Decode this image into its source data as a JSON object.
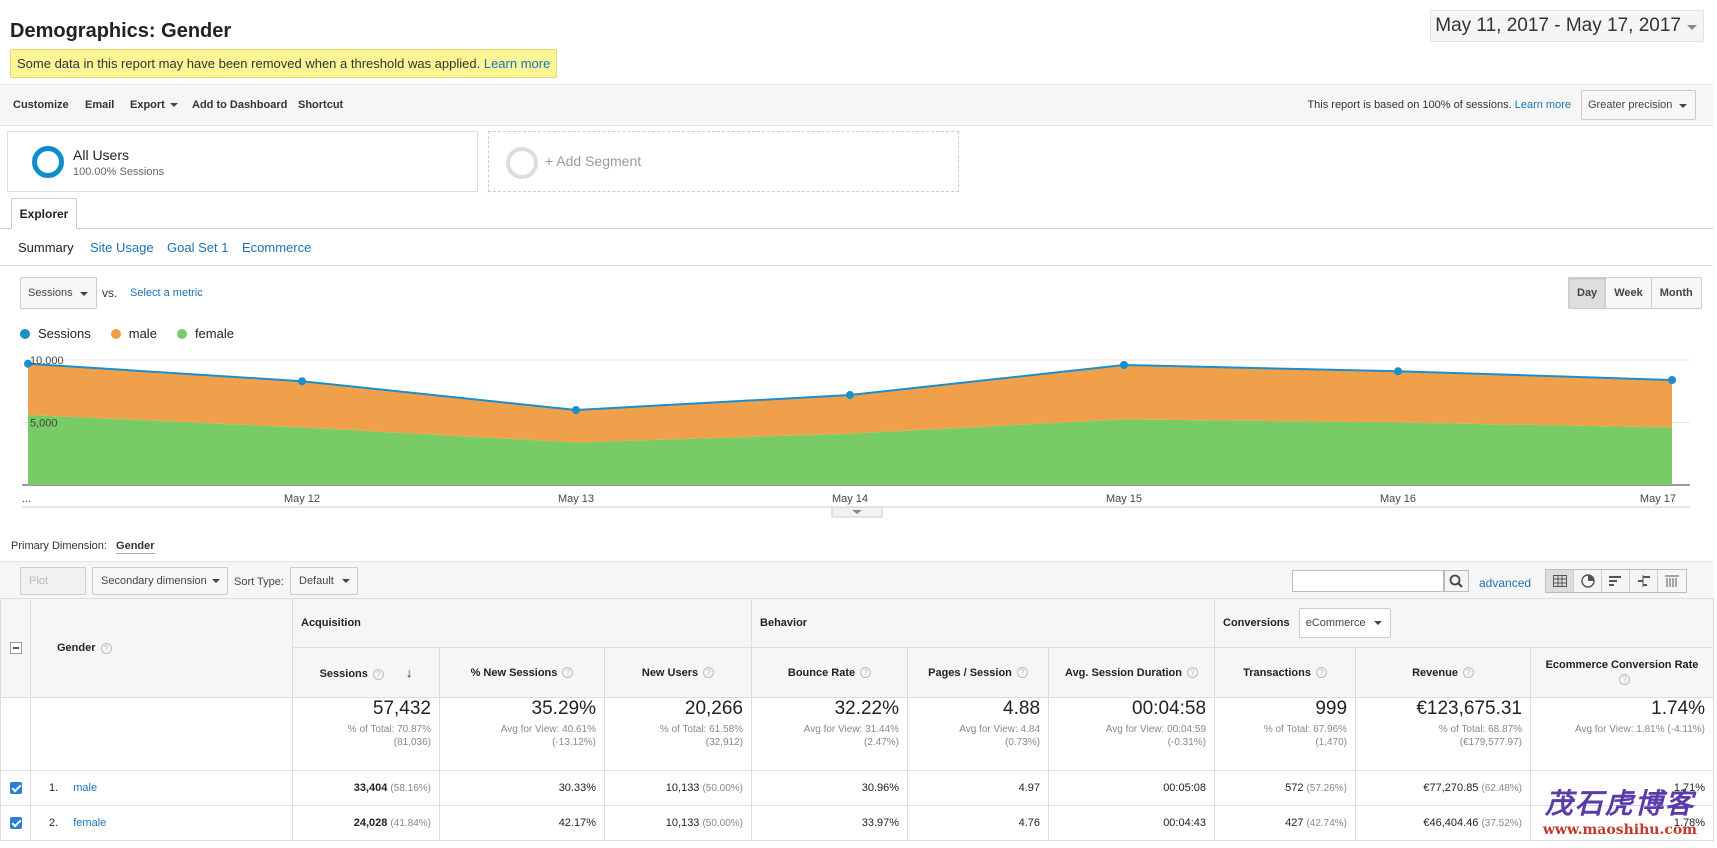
{
  "header": {
    "title": "Demographics: Gender",
    "notice_text": "Some data in this report may have been removed when a threshold was applied.",
    "notice_link": "Learn more",
    "date_range": "May 11, 2017 - May 17, 2017"
  },
  "toolbar": {
    "customize": "Customize",
    "email": "Email",
    "export": "Export",
    "add_to_dashboard": "Add to Dashboard",
    "shortcut": "Shortcut",
    "sampling_text": "This report is based on 100% of sessions.",
    "sampling_link": "Learn more",
    "precision": "Greater precision"
  },
  "segments": {
    "all_users_name": "All Users",
    "all_users_sub": "100.00% Sessions",
    "add_segment": "+ Add Segment"
  },
  "tabs": {
    "explorer": "Explorer",
    "subtabs": [
      "Summary",
      "Site Usage",
      "Goal Set 1",
      "Ecommerce"
    ]
  },
  "chart_controls": {
    "metric": "Sessions",
    "vs": "vs.",
    "select_metric": "Select a metric",
    "periods": [
      "Day",
      "Week",
      "Month"
    ]
  },
  "colors": {
    "sessions": "#1a8fc9",
    "male": "#f0a04b",
    "female": "#77cc66"
  },
  "chart_data": {
    "type": "area",
    "series": [
      {
        "name": "Sessions",
        "values": [
          9700,
          8300,
          6000,
          7200,
          9600,
          9100,
          8400
        ]
      },
      {
        "name": "male",
        "values": [
          4100,
          3700,
          2600,
          3100,
          4350,
          4100,
          3800
        ]
      },
      {
        "name": "female",
        "values": [
          5600,
          4600,
          3400,
          4100,
          5250,
          5000,
          4600
        ]
      }
    ],
    "x": [
      "...",
      "May 12",
      "May 13",
      "May 14",
      "May 15",
      "May 16",
      "May 17"
    ],
    "ytick_labels": [
      "10,000",
      "5,000"
    ],
    "ylim": [
      0,
      10000
    ]
  },
  "primary_dim": {
    "label": "Primary Dimension:",
    "value": "Gender"
  },
  "table_controls": {
    "plot_rows": "Plot Rows",
    "secondary_dimension": "Secondary dimension",
    "sort_type_label": "Sort Type:",
    "sort_type": "Default",
    "advanced": "advanced"
  },
  "table": {
    "dimension": "Gender",
    "groups": {
      "acquisition": "Acquisition",
      "behavior": "Behavior",
      "conversions": "Conversions",
      "conversions_select": "eCommerce"
    },
    "columns": [
      "Sessions",
      "% New Sessions",
      "New Users",
      "Bounce Rate",
      "Pages / Session",
      "Avg. Session Duration",
      "Transactions",
      "Revenue",
      "Ecommerce Conversion Rate"
    ],
    "totals": [
      {
        "value": "57,432",
        "sub1": "% of Total: 70.87%",
        "sub2": "(81,036)"
      },
      {
        "value": "35.29%",
        "sub1": "Avg for View: 40.61%",
        "sub2": "(-13.12%)"
      },
      {
        "value": "20,266",
        "sub1": "% of Total: 61.58%",
        "sub2": "(32,912)"
      },
      {
        "value": "32.22%",
        "sub1": "Avg for View: 31.44%",
        "sub2": "(2.47%)"
      },
      {
        "value": "4.88",
        "sub1": "Avg for View: 4.84",
        "sub2": "(0.73%)"
      },
      {
        "value": "00:04:58",
        "sub1": "Avg for View: 00:04:59",
        "sub2": "(-0.31%)"
      },
      {
        "value": "999",
        "sub1": "% of Total: 67.96%",
        "sub2": "(1,470)"
      },
      {
        "value": "€123,675.31",
        "sub1": "% of Total: 68.87%",
        "sub2": "(€179,577.97)"
      },
      {
        "value": "1.74%",
        "sub1": "Avg for View: 1.81% (-4.11%)",
        "sub2": ""
      }
    ],
    "rows": [
      {
        "idx": "1.",
        "name": "male",
        "sessions": "33,404",
        "sessions_pct": "(58.16%)",
        "new_sessions": "30.33%",
        "new_users": "10,133",
        "new_users_pct": "(50.00%)",
        "bounce": "30.96%",
        "pages": "4.97",
        "duration": "00:05:08",
        "transactions": "572",
        "transactions_pct": "(57.26%)",
        "revenue": "€77,270.85",
        "revenue_pct": "(62.48%)",
        "conv_rate": "1.71%"
      },
      {
        "idx": "2.",
        "name": "female",
        "sessions": "24,028",
        "sessions_pct": "(41.84%)",
        "new_sessions": "42.17%",
        "new_users": "10,133",
        "new_users_pct": "(50.00%)",
        "bounce": "33.97%",
        "pages": "4.76",
        "duration": "00:04:43",
        "transactions": "427",
        "transactions_pct": "(42.74%)",
        "revenue": "€46,404.46",
        "revenue_pct": "(37.52%)",
        "conv_rate": "1.78%"
      }
    ]
  },
  "watermark": {
    "cn": "茂石虎博客",
    "url": "www.maoshihu.com"
  }
}
